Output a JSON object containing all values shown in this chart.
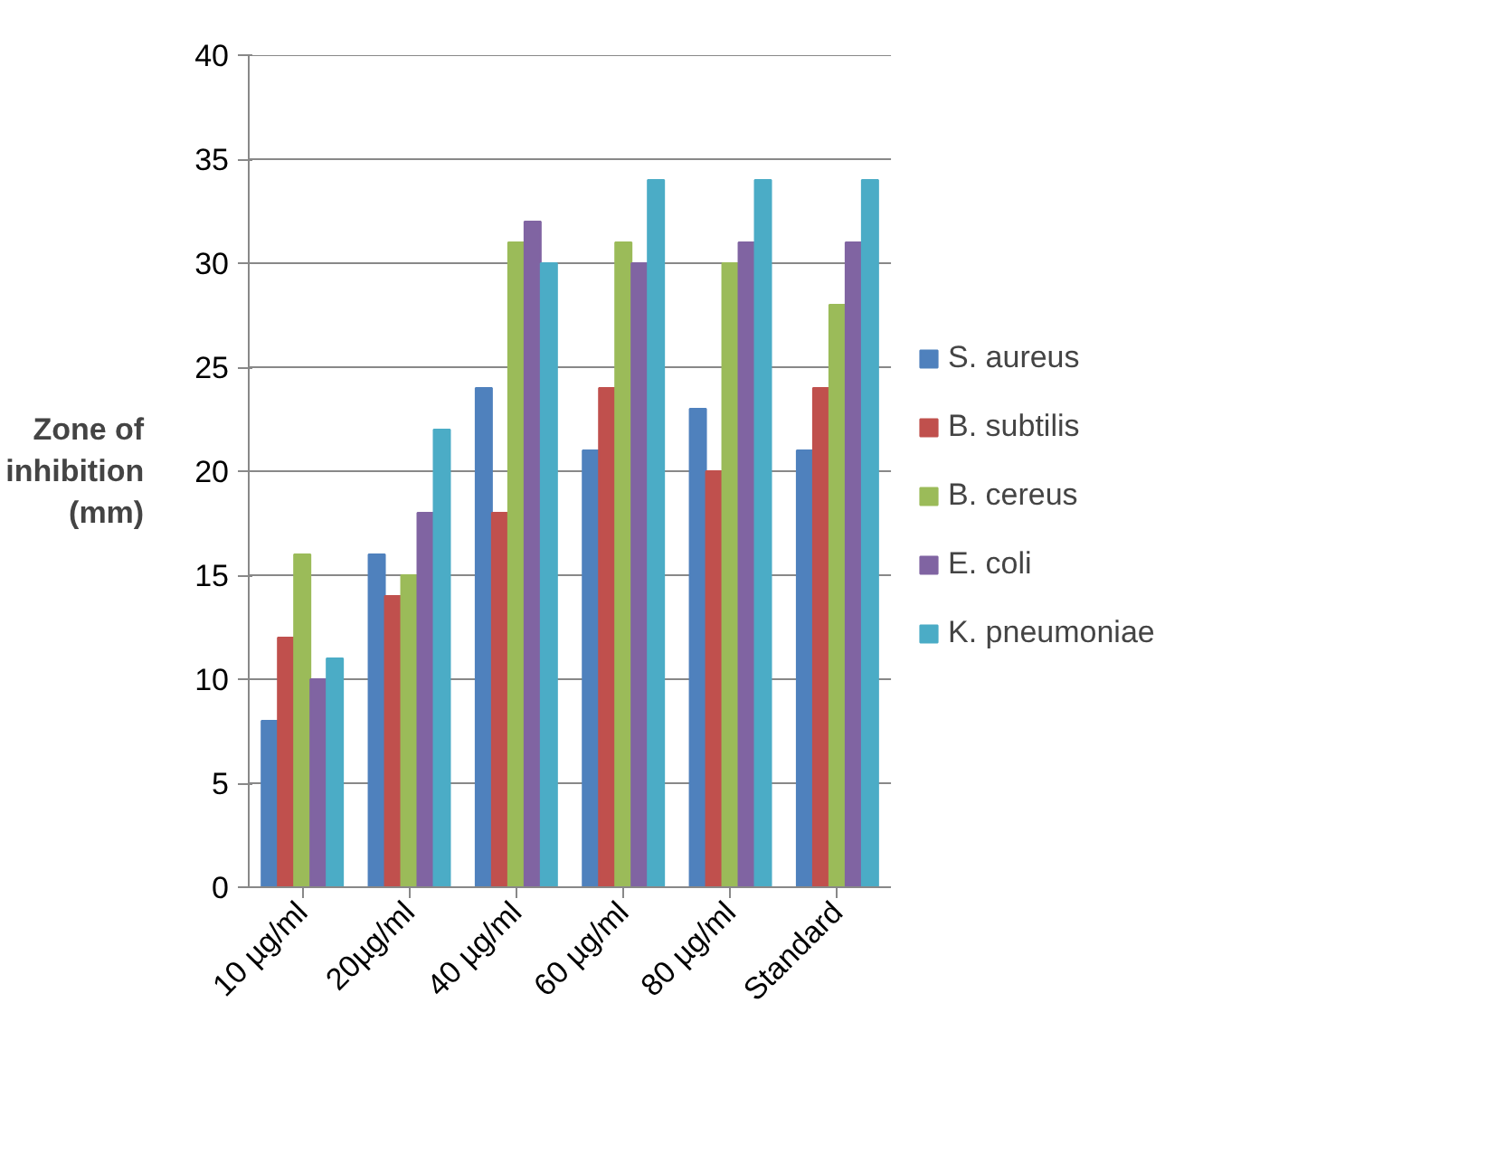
{
  "chart_data": {
    "type": "bar",
    "ylabel": "Zone of\ninhibition\n(mm)",
    "categories": [
      "10 µg/ml",
      "20µg/ml",
      "40 µg/ml",
      "60 µg/ml",
      "80 µg/ml",
      "Standard"
    ],
    "series": [
      {
        "name": "S. aureus",
        "color": "#4f81bd",
        "values": [
          8,
          16,
          24,
          21,
          23,
          21
        ]
      },
      {
        "name": "B. subtilis",
        "color": "#c0504d",
        "values": [
          12,
          14,
          18,
          24,
          20,
          24
        ]
      },
      {
        "name": "B. cereus",
        "color": "#9bbb59",
        "values": [
          16,
          15,
          31,
          31,
          30,
          28
        ]
      },
      {
        "name": "E. coli",
        "color": "#8064a2",
        "values": [
          10,
          18,
          32,
          30,
          31,
          31
        ]
      },
      {
        "name": "K. pneumoniae",
        "color": "#4bacc6",
        "values": [
          11,
          22,
          30,
          34,
          34,
          34
        ]
      }
    ],
    "ylim": [
      0,
      40
    ],
    "yticks": [
      0,
      5,
      10,
      15,
      20,
      25,
      30,
      35,
      40
    ],
    "grid": "y",
    "legend": "right"
  }
}
